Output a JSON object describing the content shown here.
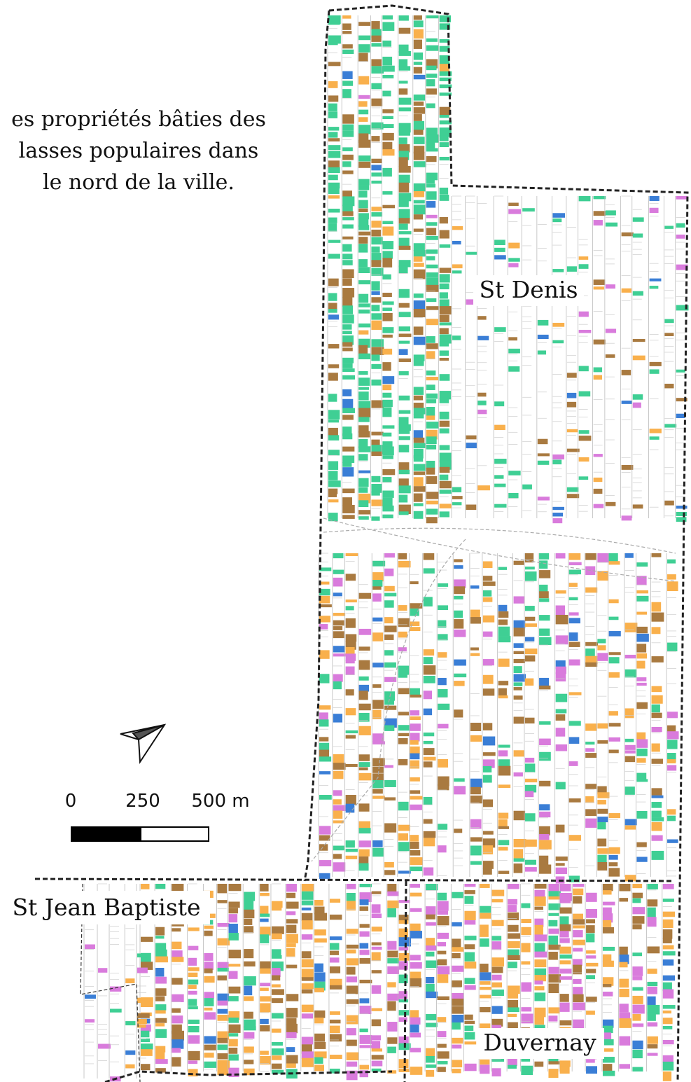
{
  "caption": {
    "lines": [
      "es propriétés bâties des",
      "lasses populaires dans",
      "le nord de la ville."
    ]
  },
  "districts": [
    {
      "label": "St Denis"
    },
    {
      "label": "St Jean Baptiste"
    },
    {
      "label": "Duvernay"
    }
  ],
  "scale_bar": {
    "labels": [
      "0",
      "250",
      "500 m"
    ]
  }
}
